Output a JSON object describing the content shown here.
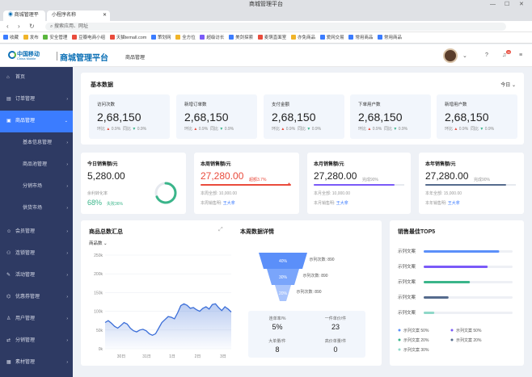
{
  "browser": {
    "window_title": "商城管理平台",
    "tabs": [
      "商城管理平台",
      "小程序名称"
    ],
    "url_placeholder": "搜索应用、网址",
    "bookmarks": [
      "收藏",
      "发布",
      "安全管理",
      "豆瓣电商小组",
      "天猫temall.com",
      "策划网",
      "全方位",
      "超级访长",
      "美剑探索",
      "麦萌直面室",
      "亦免商品",
      "爱网交易",
      "常用商品",
      "常用商品"
    ]
  },
  "header": {
    "logo_cn": "中国移动",
    "logo_en": "China Mobile",
    "brand": "商城管理平台",
    "menu": "商品管理",
    "notification_count": "11"
  },
  "sidebar": {
    "items": [
      {
        "label": "首页",
        "icon": "home-icon"
      },
      {
        "label": "订单管理",
        "icon": "order-icon"
      },
      {
        "label": "商品管理",
        "icon": "goods-icon",
        "active": true
      },
      {
        "label": "基本信息管理",
        "sub": true
      },
      {
        "label": "商品池管理",
        "sub": true
      },
      {
        "label": "分销市场",
        "sub": true
      },
      {
        "label": "供货市场",
        "sub": true
      },
      {
        "label": "会员管理",
        "icon": "member-icon"
      },
      {
        "label": "连锁管理",
        "icon": "chain-icon"
      },
      {
        "label": "活动管理",
        "icon": "activity-icon"
      },
      {
        "label": "优惠券管理",
        "icon": "coupon-icon"
      },
      {
        "label": "用户管理",
        "icon": "user-icon"
      },
      {
        "label": "分销管理",
        "icon": "distribution-icon"
      },
      {
        "label": "素材管理",
        "icon": "material-icon"
      }
    ]
  },
  "basic": {
    "title": "基本数据",
    "filter": "今日",
    "stats": [
      {
        "label": "访问次数",
        "value": "2,68,150",
        "same_label": "环比",
        "same": "0.9%",
        "yoy_label": "同比",
        "yoy": "0.9%"
      },
      {
        "label": "新增订单数",
        "value": "2,68,150",
        "same_label": "环比",
        "same": "0.9%",
        "yoy_label": "同比",
        "yoy": "0.9%"
      },
      {
        "label": "支付金额",
        "value": "2,68,150",
        "same_label": "环比",
        "same": "0.9%",
        "yoy_label": "同比",
        "yoy": "0.9%"
      },
      {
        "label": "下单用户数",
        "value": "2,68,150",
        "same_label": "环比",
        "same": "0.9%",
        "yoy_label": "同比",
        "yoy": "0.9%"
      },
      {
        "label": "新增用户数",
        "value": "2,68,150",
        "same_label": "环比",
        "same": "0.9%",
        "yoy_label": "同比",
        "yoy": "0.9%"
      }
    ]
  },
  "sales": [
    {
      "title": "今日销售额/元",
      "value": "5,280.00",
      "rate_label": "余利转化率",
      "rate": "68%",
      "rate_ext": "失败36%"
    },
    {
      "title": "本周销售额/元",
      "value": "27,280.00",
      "suffix": "超额3.7%",
      "l1": "本周全部: 10,000.00",
      "l2_label": "本周销售明:",
      "l2": "王大拿",
      "bar": "#e94b3c",
      "accent": "#e94b3c"
    },
    {
      "title": "本月销售额/元",
      "value": "27,280.00",
      "suffix": "完成90%",
      "l1": "本月全部: 10,000.00",
      "l2_label": "本月销售明:",
      "l2": "王大拿",
      "bar": "#7a5af8",
      "accent": "#222"
    },
    {
      "title": "本年销售额/元",
      "value": "27,280.00",
      "suffix": "完成90%",
      "l1": "本年全部: 15,000.00",
      "l2_label": "本年销售明:",
      "l2": "王大拿",
      "bar": "#556b8d",
      "accent": "#222"
    }
  ],
  "goods_chart": {
    "title": "商品总数汇总",
    "filter": "商品数"
  },
  "chart_data": [
    {
      "type": "area",
      "title": "商品总数汇总",
      "ylim": [
        0,
        250
      ],
      "yticks": [
        "250k",
        "200k",
        "150k",
        "100k",
        "50k",
        "0k"
      ],
      "xticks": [
        "30日",
        "31日",
        "1日",
        "2日",
        "3日"
      ],
      "x": [
        0,
        1,
        2,
        3,
        4,
        5,
        6,
        7,
        8,
        9,
        10,
        11,
        12,
        13,
        14,
        15,
        16,
        17,
        18,
        19,
        20,
        21,
        22,
        23,
        24,
        25,
        26,
        27,
        28,
        29,
        30,
        31,
        32,
        33,
        34,
        35,
        36,
        37,
        38,
        39,
        40
      ],
      "values": [
        70,
        75,
        68,
        60,
        55,
        62,
        70,
        66,
        55,
        48,
        45,
        50,
        52,
        48,
        40,
        36,
        40,
        55,
        70,
        78,
        86,
        84,
        80,
        96,
        115,
        120,
        116,
        108,
        110,
        104,
        100,
        108,
        112,
        106,
        118,
        120,
        110,
        102,
        112,
        106,
        98
      ]
    },
    {
      "type": "funnel",
      "title": "本周数据详情",
      "values": [
        40,
        30,
        20
      ],
      "labels": [
        "40%",
        "30%",
        "20%"
      ],
      "annotations": [
        {
          "label": "示列次数:",
          "value": "890"
        },
        {
          "label": "示列次数:",
          "value": "890"
        },
        {
          "label": "示列次数:",
          "value": "890"
        }
      ]
    },
    {
      "type": "bar",
      "title": "销售最佳TOP5",
      "categories": [
        "示列文案",
        "示列文案",
        "示列文案",
        "示列文案",
        "示列文案"
      ],
      "values": [
        0.85,
        0.72,
        0.52,
        0.28,
        0.12
      ],
      "colors": [
        "#5b8ff9",
        "#7a5af8",
        "#3ab58a",
        "#556b8d",
        "#8fd8c8"
      ],
      "legend": [
        {
          "label": "示列文案",
          "value": "50%",
          "color": "#5b8ff9"
        },
        {
          "label": "示列文案",
          "value": "50%",
          "color": "#7a5af8"
        },
        {
          "label": "示列文案",
          "value": "20%",
          "color": "#3ab58a"
        },
        {
          "label": "示列文案",
          "value": "20%",
          "color": "#556b8d"
        },
        {
          "label": "示列文案",
          "value": "30%",
          "color": "#8fd8c8"
        }
      ]
    }
  ],
  "week_detail": {
    "title": "本周数据详情",
    "metrics": [
      {
        "label": "连单率/%",
        "value": "5%"
      },
      {
        "label": "一件单价/件",
        "value": "23"
      },
      {
        "label": "大单量/件",
        "value": "8"
      },
      {
        "label": "高价单量/件",
        "value": "0"
      }
    ]
  },
  "top5": {
    "title": "销售最佳TOP5"
  }
}
